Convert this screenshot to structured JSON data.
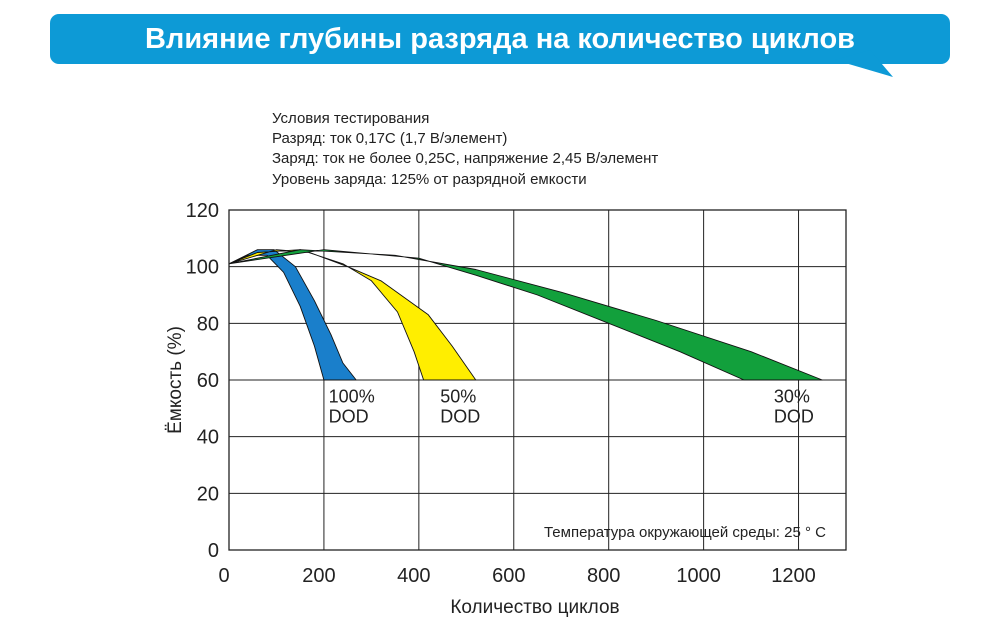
{
  "banner": {
    "title": "Влияние глубины разряда на количество циклов",
    "color": "#0d9ad6"
  },
  "conditions": [
    "Условия тестирования",
    "Разряд: ток 0,17С (1,7 В/элемент)",
    "Заряд: ток не более 0,25С, напряжение 2,45 В/элемент",
    "Уровень заряда: 125% от разрядной емкости"
  ],
  "chart_data": {
    "type": "area",
    "title": "",
    "xlabel": "Количество циклов",
    "ylabel": "Ёмкость (%)",
    "xlim": [
      0,
      1300
    ],
    "ylim": [
      0,
      120
    ],
    "x_ticks": [
      "0",
      "200",
      "400",
      "600",
      "800",
      "1000",
      "1200"
    ],
    "x_tick_values": [
      0,
      200,
      400,
      600,
      800,
      1000,
      1200
    ],
    "y_ticks": [
      "0",
      "20",
      "40",
      "60",
      "80",
      "100",
      "120"
    ],
    "y_tick_values": [
      0,
      20,
      40,
      60,
      80,
      100,
      120
    ],
    "grid": true,
    "annotation": "Температура окружающей среды: 25 ° С",
    "series": [
      {
        "name": "100% DOD",
        "label_lines": [
          "100%",
          "DOD"
        ],
        "color": "#1a7fcb",
        "label_at": [
          210,
          52
        ],
        "upper": [
          [
            0,
            101
          ],
          [
            60,
            106
          ],
          [
            95,
            106
          ],
          [
            140,
            100
          ],
          [
            180,
            88
          ],
          [
            215,
            76
          ],
          [
            240,
            66
          ],
          [
            268,
            60
          ]
        ],
        "lower": [
          [
            200,
            60
          ],
          [
            180,
            72
          ],
          [
            150,
            86
          ],
          [
            115,
            98
          ],
          [
            80,
            104
          ],
          [
            40,
            104
          ],
          [
            0,
            101
          ]
        ]
      },
      {
        "name": "50% DOD",
        "label_lines": [
          "50%",
          "DOD"
        ],
        "color": "#ffee00",
        "label_at": [
          445,
          52
        ],
        "upper": [
          [
            0,
            101
          ],
          [
            100,
            106
          ],
          [
            170,
            105
          ],
          [
            250,
            100
          ],
          [
            320,
            95
          ],
          [
            420,
            83
          ],
          [
            470,
            72
          ],
          [
            520,
            60
          ]
        ],
        "lower": [
          [
            410,
            60
          ],
          [
            390,
            70
          ],
          [
            355,
            84
          ],
          [
            300,
            95
          ],
          [
            240,
            101
          ],
          [
            150,
            106
          ],
          [
            60,
            105
          ],
          [
            0,
            101
          ]
        ]
      },
      {
        "name": "30% DOD",
        "label_lines": [
          "30%",
          "DOD"
        ],
        "color": "#12a03c",
        "label_at": [
          1148,
          52
        ],
        "upper": [
          [
            0,
            101
          ],
          [
            150,
            106
          ],
          [
            350,
            104
          ],
          [
            520,
            99
          ],
          [
            700,
            91
          ],
          [
            900,
            81
          ],
          [
            1100,
            70
          ],
          [
            1250,
            60
          ]
        ],
        "lower": [
          [
            1085,
            60
          ],
          [
            950,
            70
          ],
          [
            800,
            80
          ],
          [
            650,
            90
          ],
          [
            520,
            97
          ],
          [
            400,
            103
          ],
          [
            200,
            106
          ],
          [
            0,
            101
          ]
        ]
      }
    ]
  }
}
